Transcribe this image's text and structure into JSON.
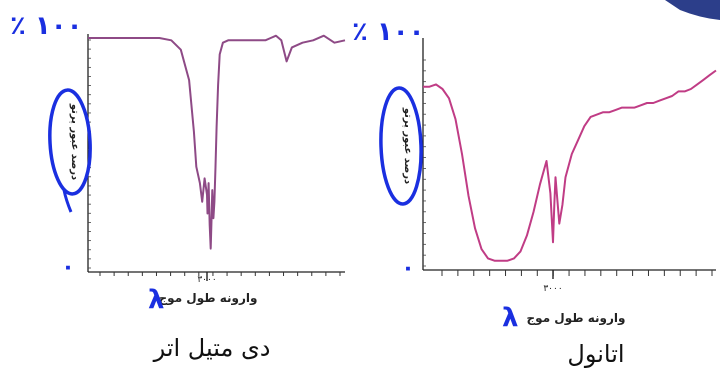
{
  "chart_data": [
    {
      "type": "line",
      "caption": "دی متیل اتر",
      "xlabel": "وارونه طول موج",
      "ylabel": "درصد عبور پرتو",
      "x_tick_label": "۳۰۰۰",
      "y_top_annotation": "٪ ۱۰۰",
      "y_bottom_annotation": "۰",
      "x_annotation": "λ",
      "grid": false,
      "xlim": [
        4000,
        400
      ],
      "ylim": [
        0,
        100
      ],
      "line_color": "#8e4a86",
      "series": [
        {
          "x": [
            4000,
            3800,
            3600,
            3400,
            3300,
            3220,
            3150,
            3110,
            3090,
            3060,
            3040,
            3020,
            3000,
            2990,
            2970,
            2950,
            2930,
            2915,
            2900,
            2880,
            2860,
            2840,
            2820,
            2790,
            2760,
            2700,
            2600,
            2400,
            2100,
            1900,
            1800,
            1700,
            1600,
            1500,
            1400,
            1200,
            1000,
            800,
            600,
            400
          ],
          "y": [
            100,
            100,
            100,
            100,
            99,
            95,
            82,
            60,
            45,
            38,
            30,
            40,
            33,
            25,
            38,
            20,
            10,
            22,
            35,
            23,
            30,
            45,
            62,
            80,
            93,
            98,
            99,
            99,
            99,
            99,
            100,
            101,
            99,
            90,
            96,
            98,
            99,
            101,
            98,
            99
          ]
        }
      ]
    },
    {
      "type": "line",
      "caption": "اتانول",
      "xlabel": "وارونه طول موج",
      "ylabel": "درصد عبور پرتو",
      "x_tick_label": "۳۰۰۰",
      "y_top_annotation": "٪ ۱۰۰",
      "y_bottom_annotation": "۰",
      "x_annotation": "λ",
      "grid": false,
      "xlim": [
        4000,
        400
      ],
      "ylim": [
        0,
        100
      ],
      "line_color": "#c03c85",
      "series": [
        {
          "x": [
            4000,
            3950,
            3900,
            3850,
            3800,
            3750,
            3700,
            3650,
            3600,
            3550,
            3500,
            3450,
            3400,
            3350,
            3300,
            3250,
            3200,
            3150,
            3100,
            3050,
            3020,
            3000,
            2980,
            2960,
            2930,
            2900,
            2850,
            2800,
            2700,
            2600,
            2500,
            2400,
            2300,
            2200,
            2100,
            2000,
            1900,
            1800,
            1700,
            1600,
            1500,
            1400,
            1300,
            1200,
            1100,
            1000,
            900,
            800,
            700,
            600,
            500,
            400
          ],
          "y": [
            79,
            79,
            80,
            78,
            74,
            65,
            50,
            32,
            18,
            9,
            5,
            4,
            4,
            4,
            5,
            8,
            15,
            25,
            37,
            47,
            33,
            12,
            28,
            40,
            30,
            20,
            28,
            40,
            50,
            56,
            62,
            66,
            67,
            68,
            68,
            69,
            70,
            70,
            70,
            71,
            72,
            72,
            73,
            74,
            75,
            77,
            77,
            78,
            80,
            82,
            84,
            86
          ]
        }
      ]
    }
  ]
}
